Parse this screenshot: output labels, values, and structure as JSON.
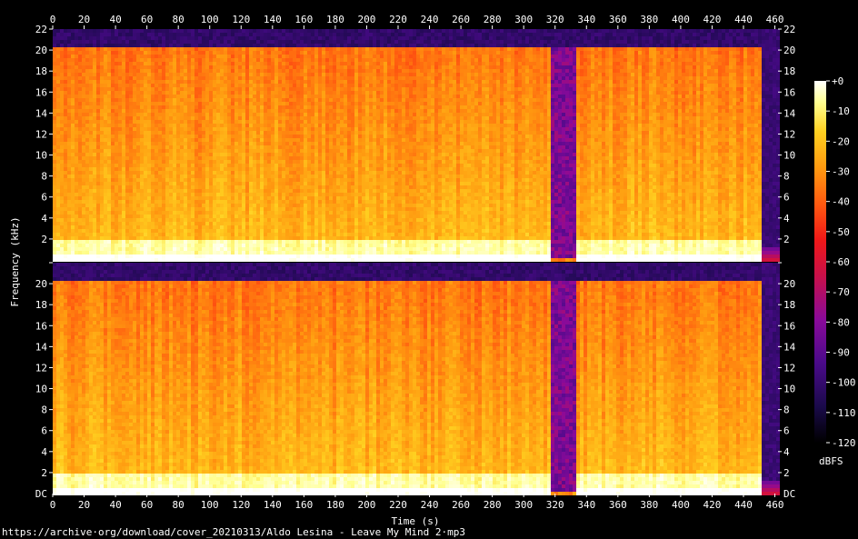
{
  "chart_data": {
    "type": "heatmap",
    "subtype": "spectrogram",
    "channels": 2,
    "xlabel": "Time (s)",
    "ylabel": "Frequency (kHz)",
    "colorbar_label": "dBFS",
    "x_ticks": [
      0,
      20,
      40,
      60,
      80,
      100,
      120,
      140,
      160,
      180,
      200,
      220,
      240,
      260,
      280,
      300,
      320,
      340,
      360,
      380,
      400,
      420,
      440,
      460
    ],
    "xlim": [
      0,
      462
    ],
    "y_ticks": [
      2,
      4,
      6,
      8,
      10,
      12,
      14,
      16,
      18,
      20,
      22
    ],
    "y_tick_labels_channel1": [
      "2",
      "4",
      "6",
      "8",
      "10",
      "12",
      "14",
      "16",
      "18",
      "20",
      "22"
    ],
    "y_tick_labels_channel2": [
      "DC",
      "2",
      "4",
      "6",
      "8",
      "10",
      "12",
      "14",
      "16",
      "18",
      "20"
    ],
    "ylim_khz": [
      0,
      22
    ],
    "colorbar_ticks": [
      "+0",
      "-10",
      "-20",
      "-30",
      "-40",
      "-50",
      "-60",
      "-70",
      "-80",
      "-90",
      "-100",
      "-110",
      "-120"
    ],
    "color_range_dbfs": [
      -120,
      0
    ],
    "content_end_s": 450,
    "lowpass_cutoff_khz": 20.4,
    "quiet_segment_s": [
      316,
      332
    ],
    "colormap": [
      "#000000",
      "#1a0a4a",
      "#4a0a8a",
      "#8a0a9a",
      "#c8104a",
      "#f01818",
      "#ff5a10",
      "#ff9a10",
      "#ffd020",
      "#ffff90",
      "#ffffff"
    ]
  },
  "source_url": "https://archive·org/download/cover_20210313/Aldo Lesina - Leave My Mind 2·mp3"
}
